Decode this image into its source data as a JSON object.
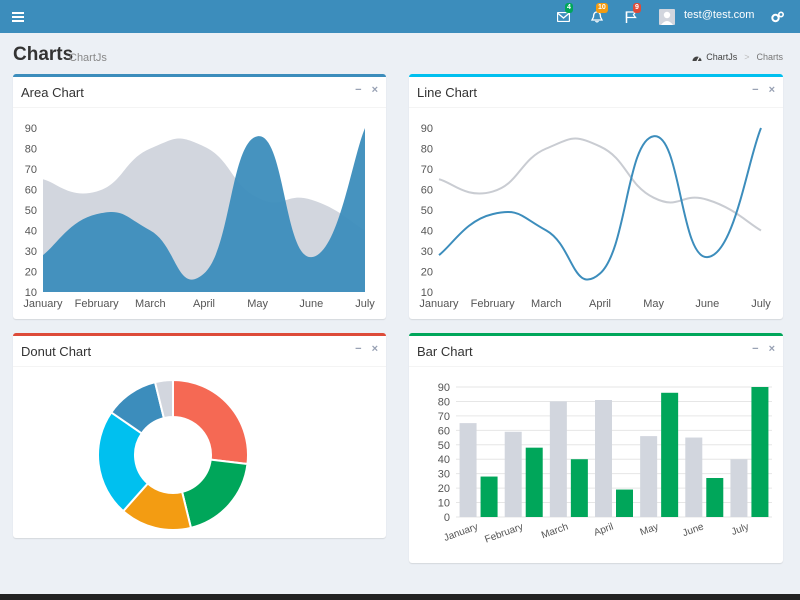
{
  "topbar": {
    "menu_icon": "hamburger-icon",
    "messages_count": "4",
    "notifications_count": "10",
    "tasks_count": "9",
    "user_email": "test@test.com",
    "colors": {
      "bar": "#3c8dbc",
      "green_badge": "#00a65a",
      "yellow_badge": "#f39c12",
      "red_badge": "#dd4b39"
    }
  },
  "header": {
    "title": "Charts",
    "subtitle": "ChartJs",
    "breadcrumb": [
      "ChartJs",
      "Charts"
    ]
  },
  "boxes": {
    "area": {
      "title": "Area Chart",
      "color": "#3c8dbc"
    },
    "line": {
      "title": "Line Chart",
      "color": "#00c0ef"
    },
    "donut": {
      "title": "Donut Chart",
      "color": "#dd4b39"
    },
    "bar": {
      "title": "Bar Chart",
      "color": "#00a65a"
    }
  },
  "box_tools": {
    "collapse": "−",
    "remove": "×"
  },
  "chart_data": [
    {
      "type": "area",
      "categories": [
        "January",
        "February",
        "March",
        "April",
        "May",
        "June",
        "July"
      ],
      "yticks": [
        10,
        20,
        30,
        40,
        50,
        60,
        70,
        80,
        90
      ],
      "ylim": [
        10,
        90
      ],
      "series": [
        {
          "values": [
            65,
            59,
            80,
            81,
            56,
            55,
            40
          ],
          "color": "#d2d6de"
        },
        {
          "values": [
            28,
            48,
            40,
            19,
            86,
            27,
            90
          ],
          "color": "#3c8dbc"
        }
      ]
    },
    {
      "type": "line",
      "categories": [
        "January",
        "February",
        "March",
        "April",
        "May",
        "June",
        "July"
      ],
      "yticks": [
        10,
        20,
        30,
        40,
        50,
        60,
        70,
        80,
        90
      ],
      "ylim": [
        10,
        90
      ],
      "series": [
        {
          "values": [
            65,
            59,
            80,
            81,
            56,
            55,
            40
          ],
          "color": "#c9ccd2"
        },
        {
          "values": [
            28,
            48,
            40,
            19,
            86,
            27,
            90
          ],
          "color": "#3c8dbc"
        }
      ]
    },
    {
      "type": "pie",
      "slices": [
        {
          "value": 700,
          "color": "#f56954"
        },
        {
          "value": 500,
          "color": "#00a65a"
        },
        {
          "value": 400,
          "color": "#f39c12"
        },
        {
          "value": 600,
          "color": "#00c0ef"
        },
        {
          "value": 300,
          "color": "#3c8dbc"
        },
        {
          "value": 100,
          "color": "#d2d6de"
        }
      ]
    },
    {
      "type": "bar",
      "categories": [
        "January",
        "February",
        "March",
        "April",
        "May",
        "June",
        "July"
      ],
      "yticks": [
        0,
        10,
        20,
        30,
        40,
        50,
        60,
        70,
        80,
        90
      ],
      "ylim": [
        0,
        90
      ],
      "series": [
        {
          "values": [
            65,
            59,
            80,
            81,
            56,
            55,
            40
          ],
          "color": "#d2d6de"
        },
        {
          "values": [
            28,
            48,
            40,
            19,
            86,
            27,
            90
          ],
          "color": "#00a65a"
        }
      ]
    }
  ]
}
